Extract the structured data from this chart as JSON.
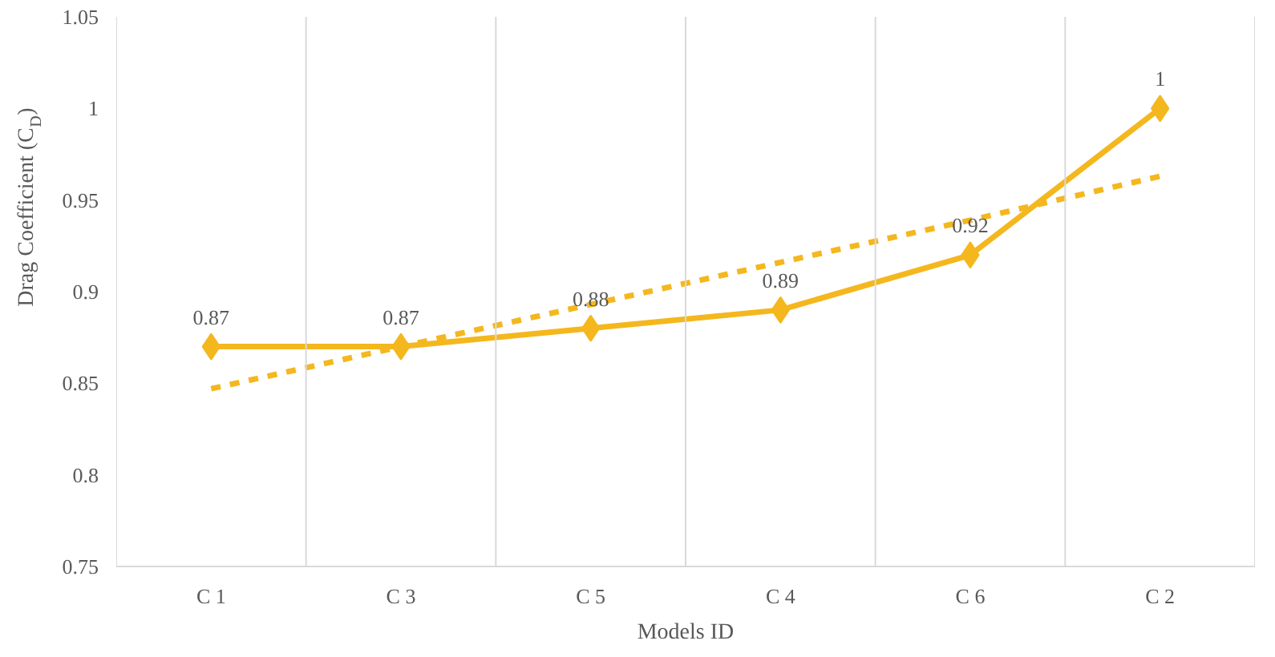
{
  "chart_data": {
    "type": "line",
    "xlabel": "Models ID",
    "ylabel": "Drag Coefficient  (C$_{D}$)",
    "categories": [
      "C 1",
      "C 3",
      "C 5",
      "C 4",
      "C 6",
      "C 2"
    ],
    "series": [
      {
        "color": "#f4b71e",
        "values": [
          0.87,
          0.87,
          0.88,
          0.89,
          0.92,
          1
        ],
        "marker": "diamond",
        "line_style": "solid",
        "data_labels": true
      },
      {
        "type": "line",
        "color": "#f4b71e",
        "values": [
          0.847,
          0.87,
          0.893,
          0.916,
          0.939,
          0.963
        ],
        "marker": "none",
        "line_style": "dashed"
      }
    ],
    "ylim": [
      0.75,
      1.05
    ],
    "yticks": [
      0.75,
      0.8,
      0.85,
      0.9,
      0.95,
      1,
      1.05
    ],
    "grid": "x"
  }
}
